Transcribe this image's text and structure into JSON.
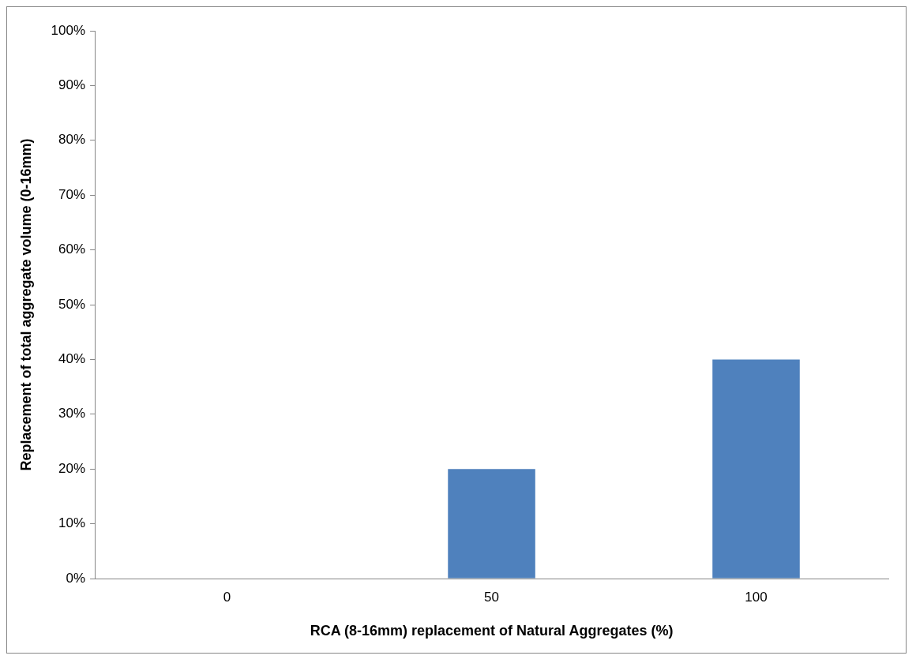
{
  "chart_data": {
    "type": "bar",
    "xlabel": "RCA (8-16mm) replacement of Natural Aggregates (%)",
    "ylabel": "Replacement of total aggregate volume (0-16mm)",
    "categories": [
      "0",
      "50",
      "100"
    ],
    "values": [
      0,
      20,
      40
    ],
    "color": "#4f81bd",
    "ylim": [
      0,
      100
    ],
    "yticks": [
      {
        "value": 0,
        "label": "0%"
      },
      {
        "value": 10,
        "label": "10%"
      },
      {
        "value": 20,
        "label": "20%"
      },
      {
        "value": 30,
        "label": "30%"
      },
      {
        "value": 40,
        "label": "40%"
      },
      {
        "value": 50,
        "label": "50%"
      },
      {
        "value": 60,
        "label": "60%"
      },
      {
        "value": 70,
        "label": "70%"
      },
      {
        "value": 80,
        "label": "80%"
      },
      {
        "value": 90,
        "label": "90%"
      },
      {
        "value": 100,
        "label": "100%"
      }
    ],
    "grid": false,
    "legend": false
  }
}
